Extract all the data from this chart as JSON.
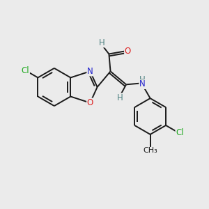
{
  "bg_color": "#ebebeb",
  "bond_color": "#1a1a1a",
  "atom_colors": {
    "Cl": "#22aa22",
    "O": "#dd2222",
    "N": "#2222cc",
    "H": "#4d8080",
    "C": "#1a1a1a",
    "CH3_text": "#1a1a1a"
  },
  "font_size": 8.5,
  "bond_lw": 1.4,
  "fig_bg": "#ebebeb"
}
